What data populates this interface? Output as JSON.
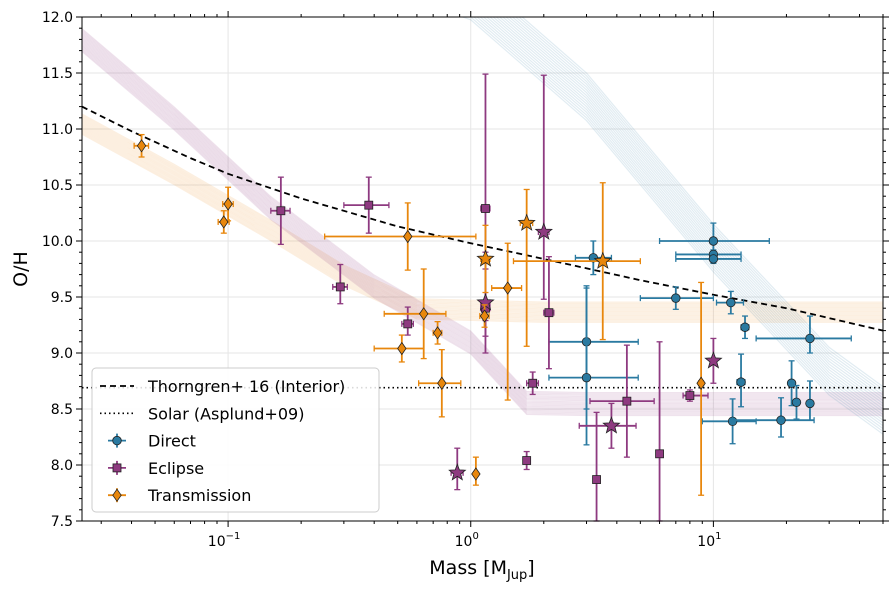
{
  "chart_data": {
    "type": "scatter",
    "xscale": "log",
    "xlim": [
      0.025,
      50
    ],
    "ylim": [
      7.5,
      12.0
    ],
    "xlabel": "Mass [M",
    "xlabel_sub": "Jup",
    "xlabel_close": "]",
    "ylabel": "O/H",
    "xticks": [
      {
        "value": 0.1,
        "base": "10",
        "exp": "−1"
      },
      {
        "value": 1,
        "base": "10",
        "exp": "0"
      },
      {
        "value": 10,
        "base": "10",
        "exp": "1"
      }
    ],
    "yticks": [
      "7.5",
      "8.0",
      "8.5",
      "9.0",
      "9.5",
      "10.0",
      "10.5",
      "11.0",
      "11.5",
      "12.0"
    ],
    "grid": true,
    "legend_position": "lower-left",
    "colors": {
      "direct": "#2a7aa1",
      "eclipse": "#8e3a80",
      "transmission": "#e8870d"
    },
    "lines": [
      {
        "name": "Thorngren+ 16 (Interior)",
        "style": "dashed",
        "points": [
          [
            0.025,
            11.2
          ],
          [
            0.04,
            10.98
          ],
          [
            0.07,
            10.74
          ],
          [
            0.1,
            10.6
          ],
          [
            0.2,
            10.38
          ],
          [
            0.5,
            10.13
          ],
          [
            1,
            9.98
          ],
          [
            2,
            9.84
          ],
          [
            5,
            9.65
          ],
          [
            10,
            9.52
          ],
          [
            20,
            9.4
          ],
          [
            50,
            9.2
          ]
        ]
      },
      {
        "name": "Solar (Asplund+09)",
        "style": "dotted",
        "y": 8.69
      }
    ],
    "series": [
      {
        "name": "Direct",
        "marker": "circle",
        "points": [
          {
            "x": 3.2,
            "y": 9.85,
            "xerr": [
              0.5,
              0.6
            ],
            "yerr": [
              0.15,
              0.15
            ],
            "star": false
          },
          {
            "x": 3.0,
            "y": 9.1,
            "xerr": [
              0.9,
              1.9
            ],
            "yerr": [
              0.6,
              0.5
            ],
            "star": false
          },
          {
            "x": 3.0,
            "y": 8.78,
            "xerr": [
              0.9,
              1.9
            ],
            "yerr": [
              0.6,
              0.8
            ],
            "star": false
          },
          {
            "x": 7.0,
            "y": 9.49,
            "xerr": [
              2.0,
              3.0
            ],
            "yerr": [
              0.1,
              0.1
            ],
            "star": false
          },
          {
            "x": 10.0,
            "y": 10.0,
            "xerr": [
              4.0,
              7.0
            ],
            "yerr": [
              0.16,
              0.16
            ],
            "star": false
          },
          {
            "x": 10.0,
            "y": 9.88,
            "xerr": [
              3.0,
              3.0
            ],
            "yerr": [
              0.04,
              0.04
            ],
            "star": false
          },
          {
            "x": 10.0,
            "y": 9.84,
            "xerr": [
              3.0,
              3.0
            ],
            "yerr": [
              0.04,
              0.04
            ],
            "star": false
          },
          {
            "x": 11.8,
            "y": 9.45,
            "xerr": [
              1.5,
              1.5
            ],
            "yerr": [
              0.1,
              0.1
            ],
            "star": false
          },
          {
            "x": 13.5,
            "y": 9.23,
            "xerr": [
              0.5,
              0.5
            ],
            "yerr": [
              0.1,
              0.1
            ],
            "star": false
          },
          {
            "x": 13.0,
            "y": 8.74,
            "xerr": [
              0.5,
              0.5
            ],
            "yerr": [
              0.22,
              0.25
            ],
            "star": false
          },
          {
            "x": 12.0,
            "y": 8.39,
            "xerr": [
              3.0,
              3.0
            ],
            "yerr": [
              0.2,
              0.2
            ],
            "star": false
          },
          {
            "x": 19.0,
            "y": 8.4,
            "xerr": [
              7.0,
              7.0
            ],
            "yerr": [
              0.15,
              0.2
            ],
            "star": false
          },
          {
            "x": 25.0,
            "y": 9.13,
            "xerr": [
              10.0,
              12.0
            ],
            "yerr": [
              0.13,
              0.2
            ],
            "star": false
          },
          {
            "x": 21.0,
            "y": 8.73,
            "xerr": [
              0.5,
              0.5
            ],
            "yerr": [
              0.2,
              0.2
            ],
            "star": false
          },
          {
            "x": 22.0,
            "y": 8.56,
            "xerr": [
              0.5,
              0.5
            ],
            "yerr": [
              0.15,
              0.15
            ],
            "star": false
          },
          {
            "x": 25.0,
            "y": 8.55,
            "xerr": [
              0.5,
              0.5
            ],
            "yerr": [
              0.15,
              0.2
            ],
            "star": false
          }
        ]
      },
      {
        "name": "Eclipse",
        "marker": "square",
        "points": [
          {
            "x": 0.165,
            "y": 10.27,
            "xerr": [
              0.015,
              0.015
            ],
            "yerr": [
              0.3,
              0.3
            ],
            "star": false
          },
          {
            "x": 0.38,
            "y": 10.32,
            "xerr": [
              0.08,
              0.08
            ],
            "yerr": [
              0.25,
              0.25
            ],
            "star": false
          },
          {
            "x": 0.29,
            "y": 9.59,
            "xerr": [
              0.02,
              0.02
            ],
            "yerr": [
              0.15,
              0.2
            ],
            "star": false
          },
          {
            "x": 0.55,
            "y": 9.26,
            "xerr": [
              0.03,
              0.03
            ],
            "yerr": [
              0.1,
              0.15
            ],
            "star": false
          },
          {
            "x": 1.15,
            "y": 10.29,
            "xerr": [
              0.05,
              0.05
            ],
            "yerr": [
              1.0,
              1.2
            ],
            "star": false
          },
          {
            "x": 1.15,
            "y": 9.4,
            "xerr": [
              0.05,
              0.05
            ],
            "yerr": [
              0.4,
              0.5
            ],
            "star": false
          },
          {
            "x": 2.1,
            "y": 9.36,
            "xerr": [
              0.1,
              0.1
            ],
            "yerr": [
              0.5,
              0.5
            ],
            "star": false
          },
          {
            "x": 1.8,
            "y": 8.73,
            "xerr": [
              0.1,
              0.1
            ],
            "yerr": [
              0.1,
              0.1
            ],
            "star": false
          },
          {
            "x": 1.7,
            "y": 8.04,
            "xerr": [
              0.05,
              0.05
            ],
            "yerr": [
              0.08,
              0.08
            ],
            "star": false
          },
          {
            "x": 3.3,
            "y": 7.87,
            "xerr": [
              0.1,
              0.1
            ],
            "yerr": [
              0.6,
              0.6
            ],
            "star": false
          },
          {
            "x": 4.4,
            "y": 8.57,
            "xerr": [
              1.3,
              1.3
            ],
            "yerr": [
              0.5,
              0.5
            ],
            "star": false
          },
          {
            "x": 6.0,
            "y": 8.1,
            "xerr": [
              0.1,
              0.1
            ],
            "yerr": [
              0.6,
              1.0
            ],
            "star": false
          },
          {
            "x": 8.0,
            "y": 8.62,
            "xerr": [
              0.5,
              1.5
            ],
            "yerr": [
              0.05,
              0.05
            ],
            "star": false
          },
          {
            "x": 0.88,
            "y": 7.93,
            "xerr": [
              0.05,
              0.05
            ],
            "yerr": [
              0.15,
              0.22
            ],
            "star": true
          },
          {
            "x": 2.0,
            "y": 10.08,
            "xerr": [
              0.1,
              0.1
            ],
            "yerr": [
              0.6,
              1.4
            ],
            "star": true
          },
          {
            "x": 1.15,
            "y": 9.45,
            "xerr": [
              0.05,
              0.05
            ],
            "yerr": [
              0.3,
              0.3
            ],
            "star": true
          },
          {
            "x": 3.8,
            "y": 8.35,
            "xerr": [
              1.0,
              1.0
            ],
            "yerr": [
              0.2,
              0.2
            ],
            "star": true
          },
          {
            "x": 10.0,
            "y": 8.93,
            "xerr": [
              0.3,
              0.3
            ],
            "yerr": [
              0.2,
              0.2
            ],
            "star": true
          }
        ]
      },
      {
        "name": "Transmission",
        "marker": "diamond",
        "points": [
          {
            "x": 0.044,
            "y": 10.85,
            "xerr": [
              0.003,
              0.003
            ],
            "yerr": [
              0.1,
              0.1
            ],
            "star": false
          },
          {
            "x": 0.1,
            "y": 10.33,
            "xerr": [
              0.005,
              0.005
            ],
            "yerr": [
              0.15,
              0.15
            ],
            "star": false
          },
          {
            "x": 0.096,
            "y": 10.17,
            "xerr": [
              0.005,
              0.005
            ],
            "yerr": [
              0.1,
              0.1
            ],
            "star": false
          },
          {
            "x": 0.55,
            "y": 10.04,
            "xerr": [
              0.3,
              0.5
            ],
            "yerr": [
              0.3,
              0.3
            ],
            "star": false
          },
          {
            "x": 0.64,
            "y": 9.35,
            "xerr": [
              0.2,
              0.15
            ],
            "yerr": [
              0.4,
              0.4
            ],
            "star": false
          },
          {
            "x": 0.73,
            "y": 9.18,
            "xerr": [
              0.03,
              0.03
            ],
            "yerr": [
              0.1,
              0.1
            ],
            "star": false
          },
          {
            "x": 0.52,
            "y": 9.04,
            "xerr": [
              0.12,
              0.12
            ],
            "yerr": [
              0.12,
              0.12
            ],
            "star": false
          },
          {
            "x": 0.76,
            "y": 8.73,
            "xerr": [
              0.15,
              0.15
            ],
            "yerr": [
              0.3,
              0.3
            ],
            "star": false
          },
          {
            "x": 1.14,
            "y": 9.33,
            "xerr": [
              0.05,
              0.05
            ],
            "yerr": [
              0.1,
              0.1
            ],
            "star": false
          },
          {
            "x": 1.42,
            "y": 9.58,
            "xerr": [
              0.2,
              0.2
            ],
            "yerr": [
              1.0,
              0.4
            ],
            "star": false
          },
          {
            "x": 1.05,
            "y": 7.92,
            "xerr": [
              0.02,
              0.02
            ],
            "yerr": [
              0.1,
              0.15
            ],
            "star": false
          },
          {
            "x": 8.9,
            "y": 8.73,
            "xerr": [
              0.2,
              0.2
            ],
            "yerr": [
              1.0,
              0.9
            ],
            "star": false
          },
          {
            "x": 1.15,
            "y": 9.84,
            "xerr": [
              0.05,
              0.05
            ],
            "yerr": [
              0.3,
              0.3
            ],
            "star": true
          },
          {
            "x": 1.7,
            "y": 10.16,
            "xerr": [
              0.1,
              0.1
            ],
            "yerr": [
              1.1,
              0.3
            ],
            "star": true
          },
          {
            "x": 3.5,
            "y": 9.82,
            "xerr": [
              2.0,
              1.5
            ],
            "yerr": [
              0.7,
              0.7
            ],
            "star": true
          }
        ]
      }
    ],
    "legend": [
      "Thorngren+ 16 (Interior)",
      "Solar (Asplund+09)",
      "Direct",
      "Eclipse",
      "Transmission"
    ]
  }
}
